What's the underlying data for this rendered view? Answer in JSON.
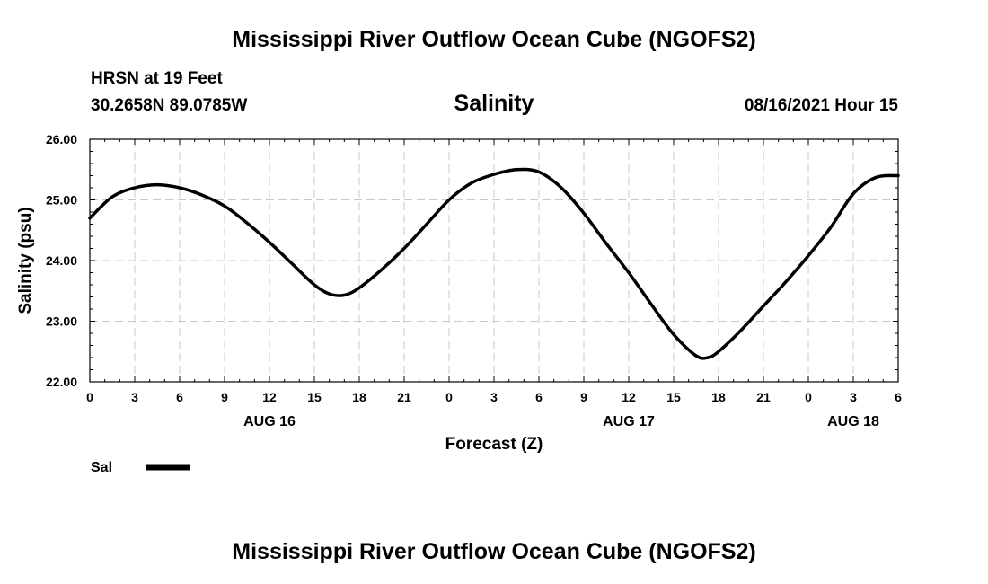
{
  "header": {
    "top_title": "Mississippi River Outflow Ocean Cube (NGOFS2)",
    "station": "HRSN at 19 Feet",
    "coords": "30.2658N  89.0785W",
    "variable": "Salinity",
    "timestamp": "08/16/2021 Hour 15",
    "bottom_title": "Mississippi River Outflow Ocean Cube (NGOFS2)"
  },
  "legend": {
    "label": "Sal",
    "color": "#000000"
  },
  "chart_data": {
    "type": "line",
    "title": "Salinity",
    "xlabel": "Forecast (Z)",
    "ylabel": "Salinity (psu)",
    "xlim": [
      0,
      54
    ],
    "ylim": [
      22.0,
      26.0
    ],
    "y_ticks": [
      "22.00",
      "23.00",
      "24.00",
      "25.00",
      "26.00"
    ],
    "y_tick_values": [
      22,
      23,
      24,
      25,
      26
    ],
    "x_tick_values": [
      0,
      3,
      6,
      9,
      12,
      15,
      18,
      21,
      24,
      27,
      30,
      33,
      36,
      39,
      42,
      45,
      48,
      51,
      54
    ],
    "x_tick_labels": [
      "0",
      "3",
      "6",
      "9",
      "12",
      "15",
      "18",
      "21",
      "0",
      "3",
      "6",
      "9",
      "12",
      "15",
      "18",
      "21",
      "0",
      "3",
      "6"
    ],
    "date_labels": [
      {
        "x": 12,
        "label": "AUG 16"
      },
      {
        "x": 36,
        "label": "AUG 17"
      },
      {
        "x": 51,
        "label": "AUG 18"
      }
    ],
    "grid": true,
    "series": [
      {
        "name": "Sal",
        "color": "#000000",
        "x": [
          0,
          1.5,
          3,
          4.5,
          6,
          7.5,
          9,
          10.5,
          12,
          13.5,
          15,
          16,
          17,
          18,
          19.5,
          21,
          22.5,
          24,
          25.5,
          27,
          28.5,
          30,
          31.5,
          33,
          34.5,
          36,
          37.5,
          39,
          40.5,
          41.3,
          42,
          43.5,
          45,
          46.5,
          48,
          49.5,
          51,
          52.5,
          54
        ],
        "values": [
          24.7,
          25.05,
          25.2,
          25.25,
          25.2,
          25.08,
          24.9,
          24.62,
          24.3,
          23.95,
          23.6,
          23.45,
          23.43,
          23.55,
          23.85,
          24.2,
          24.6,
          25.0,
          25.28,
          25.42,
          25.5,
          25.46,
          25.2,
          24.78,
          24.28,
          23.8,
          23.28,
          22.78,
          22.43,
          22.4,
          22.5,
          22.85,
          23.25,
          23.65,
          24.08,
          24.55,
          25.1,
          25.37,
          25.4
        ]
      }
    ]
  }
}
